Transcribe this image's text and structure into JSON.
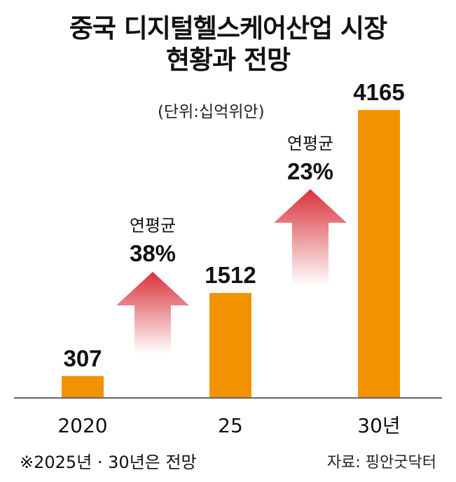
{
  "title_line1": "중국 디지털헬스케어산업 시장",
  "title_line2": "현황과 전망",
  "unit": "(단위:십억위안)",
  "footnote": "※2025년 · 30년은 전망",
  "source": "자료: 핑안굿닥터",
  "colors": {
    "bar": "#f39200",
    "arrow_top": "#d9323a",
    "arrow_bottom": "#ffffff",
    "axis": "#333333"
  },
  "chart_data": {
    "type": "bar",
    "categories": [
      "2020",
      "25",
      "30년"
    ],
    "values": [
      307,
      1512,
      4165
    ],
    "value_labels": [
      "307",
      "1512",
      "4165"
    ],
    "title": "중국 디지털헬스케어산업 시장 현황과 전망",
    "ylabel": "십억위안",
    "growth_annotations": [
      {
        "label": "연평균",
        "value": "38%",
        "between": [
          "2020",
          "25"
        ]
      },
      {
        "label": "연평균",
        "value": "23%",
        "between": [
          "25",
          "30년"
        ]
      }
    ]
  }
}
